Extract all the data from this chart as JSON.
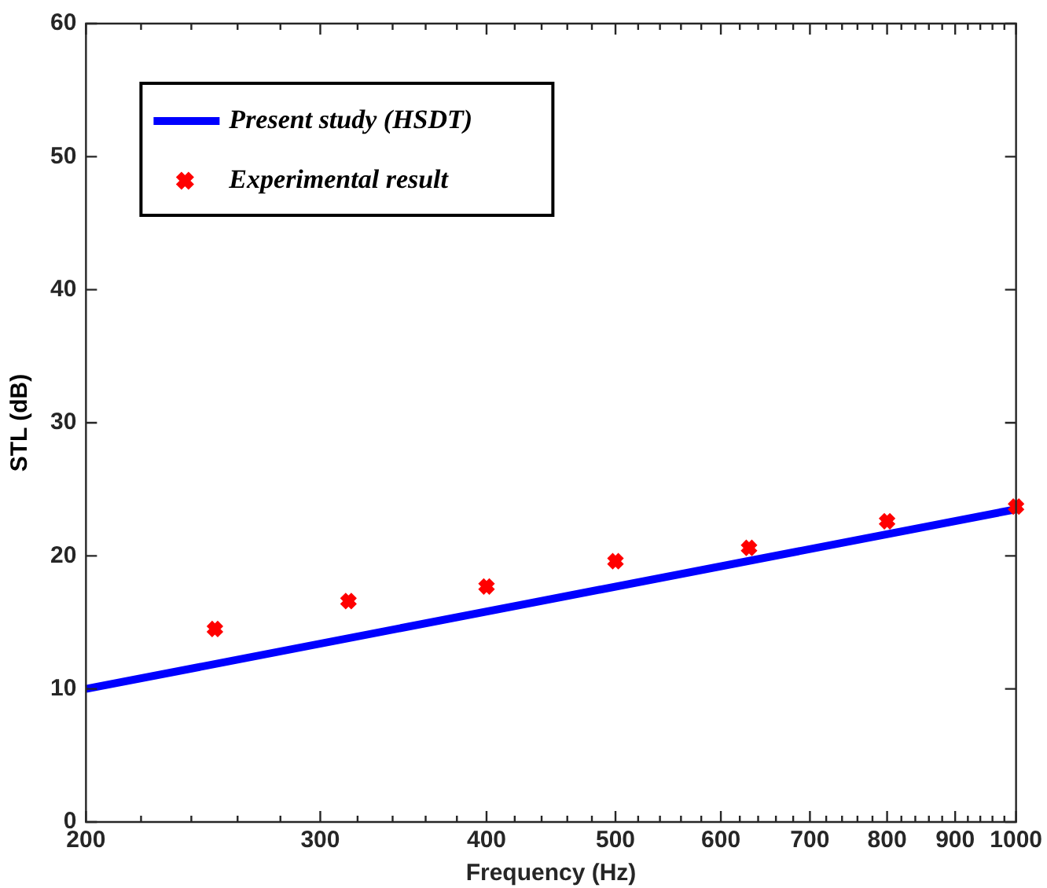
{
  "chart_data": {
    "type": "line",
    "xlabel": "Frequency (Hz)",
    "ylabel": "STL (dB)",
    "log": "x",
    "xlim": [
      200,
      1000
    ],
    "xticks": [
      200,
      {
        "value": 220,
        "label": null
      },
      {
        "value": 240,
        "label": null
      },
      {
        "value": 260,
        "label": null
      },
      {
        "value": 280,
        "label": null
      },
      300,
      {
        "value": 320,
        "label": null
      },
      {
        "value": 340,
        "label": null
      },
      {
        "value": 360,
        "label": null
      },
      {
        "value": 380,
        "label": null
      },
      400,
      {
        "value": 420,
        "label": null
      },
      {
        "value": 440,
        "label": null
      },
      {
        "value": 460,
        "label": null
      },
      {
        "value": 480,
        "label": null
      },
      500,
      {
        "value": 520,
        "label": null
      },
      {
        "value": 540,
        "label": null
      },
      {
        "value": 560,
        "label": null
      },
      {
        "value": 580,
        "label": null
      },
      600,
      {
        "value": 620,
        "label": null
      },
      {
        "value": 640,
        "label": null
      },
      {
        "value": 660,
        "label": null
      },
      {
        "value": 680,
        "label": null
      },
      700,
      {
        "value": 720,
        "label": null
      },
      {
        "value": 740,
        "label": null
      },
      {
        "value": 760,
        "label": null
      },
      {
        "value": 780,
        "label": null
      },
      800,
      {
        "value": 820,
        "label": null
      },
      {
        "value": 840,
        "label": null
      },
      {
        "value": 860,
        "label": null
      },
      {
        "value": 880,
        "label": null
      },
      900,
      {
        "value": 920,
        "label": null
      },
      {
        "value": 940,
        "label": null
      },
      {
        "value": 960,
        "label": null
      },
      {
        "value": 980,
        "label": null
      },
      1000
    ],
    "ylim": [
      0,
      60
    ],
    "yticks": [
      0,
      10,
      20,
      30,
      40,
      50,
      60
    ],
    "grid": false,
    "legend": "top left",
    "series": [
      {
        "name": "Present study (HSDT)",
        "color": "#0000ff",
        "x": [
          200,
          1000
        ],
        "values": [
          10,
          23.5
        ],
        "line_style": "solid",
        "marker": "none"
      },
      {
        "name": "Experimental result",
        "type": "scatter",
        "color": "#ff0000",
        "x": [
          250,
          315,
          400,
          500,
          630,
          800,
          1000
        ],
        "values": [
          14.5,
          16.6,
          17.7,
          19.6,
          20.6,
          22.6,
          23.7
        ],
        "marker": "cross"
      }
    ]
  }
}
